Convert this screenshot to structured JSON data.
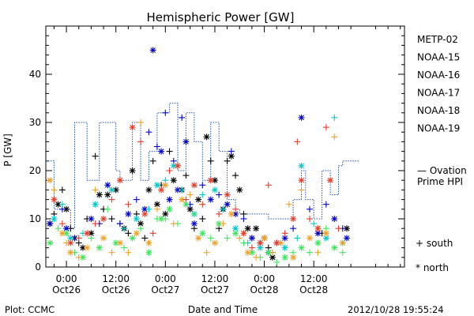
{
  "chart_data": {
    "type": "scatter",
    "title": "Hemispheric Power [GW]",
    "ylabel": "P [GW]",
    "xlabel": "Date and Time",
    "ylim": [
      0,
      50
    ],
    "yticks": [
      0,
      10,
      20,
      30,
      40
    ],
    "x_range_hours": [
      -5.0,
      82.0
    ],
    "x_axis_note": "hours relative to 2012-10-26 00:00 UT",
    "xticks": [
      {
        "t": 0,
        "line1": "0:00",
        "line2": "Oct26"
      },
      {
        "t": 12,
        "line1": "12:00",
        "line2": "Oct26"
      },
      {
        "t": 24,
        "line1": "0:00",
        "line2": "Oct27"
      },
      {
        "t": 36,
        "line1": "12:00",
        "line2": "Oct27"
      },
      {
        "t": 48,
        "line1": "0:00",
        "line2": "Oct28"
      },
      {
        "t": 60,
        "line1": "12:00",
        "line2": "Oct28"
      }
    ],
    "series": [
      {
        "name": "METP-02",
        "color": "#000000",
        "points": [
          [
            -4,
            9
          ],
          [
            -3,
            11
          ],
          [
            -2,
            13
          ],
          [
            -1,
            16
          ],
          [
            0,
            12
          ],
          [
            1,
            8
          ],
          [
            2,
            6
          ],
          [
            3,
            5
          ],
          [
            4,
            4
          ],
          [
            5,
            10
          ],
          [
            6,
            7
          ],
          [
            7,
            23
          ],
          [
            8,
            15
          ],
          [
            9,
            12
          ],
          [
            10,
            15
          ],
          [
            11,
            10
          ],
          [
            12,
            16
          ],
          [
            13,
            9
          ],
          [
            14,
            8
          ],
          [
            15,
            7
          ],
          [
            16,
            20
          ],
          [
            17,
            11
          ],
          [
            18,
            9
          ],
          [
            19,
            6
          ],
          [
            20,
            16
          ],
          [
            21,
            22
          ],
          [
            22,
            13
          ],
          [
            23,
            17
          ],
          [
            24,
            11
          ],
          [
            25,
            24
          ],
          [
            26,
            18
          ],
          [
            27,
            21
          ],
          [
            28,
            16
          ],
          [
            29,
            19
          ],
          [
            30,
            12
          ],
          [
            31,
            8
          ],
          [
            32,
            14
          ],
          [
            33,
            10
          ],
          [
            34,
            27
          ],
          [
            35,
            22
          ],
          [
            36,
            18
          ],
          [
            37,
            8
          ],
          [
            38,
            12
          ],
          [
            39,
            22
          ],
          [
            40,
            23
          ],
          [
            41,
            19
          ],
          [
            42,
            16
          ],
          [
            43,
            11
          ],
          [
            44,
            8
          ],
          [
            45,
            6
          ],
          [
            46,
            8
          ],
          [
            47,
            5
          ],
          [
            48,
            6
          ],
          [
            49,
            4
          ],
          [
            50,
            2
          ],
          [
            62,
            7
          ],
          [
            68,
            8
          ]
        ]
      },
      {
        "name": "NOAA-15",
        "color": "#0000c8",
        "points": [
          [
            -4,
            9
          ],
          [
            -1,
            12
          ],
          [
            0,
            8
          ],
          [
            2,
            6
          ],
          [
            6,
            10
          ],
          [
            8,
            9
          ],
          [
            10,
            17
          ],
          [
            13,
            9
          ],
          [
            15,
            11
          ],
          [
            17,
            14
          ],
          [
            19,
            12
          ],
          [
            20,
            28
          ],
          [
            21,
            45
          ],
          [
            22,
            25
          ],
          [
            23,
            24
          ],
          [
            24,
            32
          ],
          [
            25,
            14
          ],
          [
            26,
            22
          ],
          [
            27,
            16
          ],
          [
            28,
            31
          ],
          [
            29,
            26
          ],
          [
            30,
            13
          ],
          [
            31,
            9
          ],
          [
            33,
            17
          ],
          [
            35,
            14
          ],
          [
            37,
            15
          ],
          [
            39,
            13
          ],
          [
            40,
            24
          ],
          [
            41,
            11
          ],
          [
            43,
            10
          ],
          [
            45,
            6
          ],
          [
            47,
            5
          ],
          [
            49,
            3
          ],
          [
            51,
            5
          ],
          [
            53,
            6
          ],
          [
            55,
            8
          ],
          [
            57,
            31
          ],
          [
            59,
            12
          ],
          [
            61,
            7
          ],
          [
            63,
            13
          ],
          [
            65,
            10
          ],
          [
            67,
            8
          ],
          [
            68,
            6
          ]
        ]
      },
      {
        "name": "NOAA-16",
        "color": "#00c8c8",
        "points": [
          [
            -3,
            10
          ],
          [
            -1,
            13
          ],
          [
            1,
            6
          ],
          [
            4,
            7
          ],
          [
            7,
            13
          ],
          [
            9,
            10
          ],
          [
            11,
            16
          ],
          [
            14,
            8
          ],
          [
            17,
            10
          ],
          [
            20,
            12
          ],
          [
            22,
            17
          ],
          [
            24,
            18
          ],
          [
            26,
            21
          ],
          [
            28,
            16
          ],
          [
            31,
            11
          ],
          [
            33,
            15
          ],
          [
            36,
            16
          ],
          [
            38,
            12
          ],
          [
            41,
            8
          ],
          [
            44,
            5
          ],
          [
            47,
            4
          ],
          [
            50,
            3
          ],
          [
            53,
            4
          ],
          [
            56,
            6
          ],
          [
            57,
            21
          ],
          [
            60,
            9
          ],
          [
            63,
            6
          ],
          [
            65,
            31
          ],
          [
            67,
            5
          ]
        ]
      },
      {
        "name": "NOAA-17",
        "color": "#3ce65a",
        "points": [
          [
            -4,
            5
          ],
          [
            -2,
            8
          ],
          [
            0,
            7
          ],
          [
            2,
            3
          ],
          [
            4,
            2
          ],
          [
            6,
            6
          ],
          [
            8,
            4
          ],
          [
            10,
            12
          ],
          [
            12,
            5
          ],
          [
            14,
            4
          ],
          [
            16,
            6
          ],
          [
            18,
            8
          ],
          [
            20,
            3
          ],
          [
            22,
            10
          ],
          [
            23,
            10
          ],
          [
            24,
            10
          ],
          [
            25,
            12
          ],
          [
            27,
            9
          ],
          [
            29,
            13
          ],
          [
            31,
            11
          ],
          [
            33,
            7
          ],
          [
            35,
            6
          ],
          [
            37,
            9
          ],
          [
            39,
            6
          ],
          [
            41,
            7
          ],
          [
            43,
            5
          ],
          [
            45,
            3
          ],
          [
            47,
            2
          ],
          [
            49,
            3
          ],
          [
            51,
            1
          ],
          [
            53,
            2
          ],
          [
            55,
            3
          ],
          [
            57,
            4
          ],
          [
            59,
            3
          ],
          [
            61,
            5
          ],
          [
            63,
            8
          ],
          [
            65,
            4
          ],
          [
            67,
            3
          ]
        ]
      },
      {
        "name": "NOAA-18",
        "color": "#f0a028",
        "points": [
          [
            -4,
            18
          ],
          [
            -3,
            16
          ],
          [
            -1,
            7
          ],
          [
            0,
            5
          ],
          [
            1,
            3
          ],
          [
            3,
            2
          ],
          [
            5,
            4
          ],
          [
            7,
            16
          ],
          [
            9,
            6
          ],
          [
            11,
            3
          ],
          [
            13,
            5
          ],
          [
            15,
            3
          ],
          [
            17,
            7
          ],
          [
            18,
            30
          ],
          [
            20,
            5
          ],
          [
            22,
            12
          ],
          [
            24,
            17
          ],
          [
            26,
            9
          ],
          [
            28,
            14
          ],
          [
            30,
            15
          ],
          [
            32,
            6
          ],
          [
            34,
            3
          ],
          [
            36,
            5
          ],
          [
            38,
            9
          ],
          [
            40,
            11
          ],
          [
            42,
            6
          ],
          [
            44,
            3
          ],
          [
            46,
            2
          ],
          [
            48,
            6
          ],
          [
            50,
            3
          ],
          [
            52,
            5
          ],
          [
            54,
            13
          ],
          [
            55,
            2
          ],
          [
            57,
            16
          ],
          [
            59,
            6
          ],
          [
            61,
            3
          ],
          [
            63,
            7
          ],
          [
            65,
            27
          ],
          [
            67,
            5
          ]
        ]
      },
      {
        "name": "NOAA-19",
        "color": "#e63c28",
        "points": [
          [
            -3,
            14
          ],
          [
            -1,
            9
          ],
          [
            1,
            5
          ],
          [
            3,
            6
          ],
          [
            5,
            7
          ],
          [
            7,
            9
          ],
          [
            9,
            10
          ],
          [
            11,
            14
          ],
          [
            13,
            18
          ],
          [
            15,
            13
          ],
          [
            16,
            29
          ],
          [
            18,
            26
          ],
          [
            19,
            11
          ],
          [
            21,
            7
          ],
          [
            23,
            16
          ],
          [
            25,
            20
          ],
          [
            27,
            21
          ],
          [
            29,
            14
          ],
          [
            31,
            17
          ],
          [
            33,
            13
          ],
          [
            35,
            18
          ],
          [
            37,
            11
          ],
          [
            39,
            15
          ],
          [
            41,
            12
          ],
          [
            43,
            7
          ],
          [
            45,
            4
          ],
          [
            47,
            5
          ],
          [
            49,
            17
          ],
          [
            51,
            5
          ],
          [
            53,
            7
          ],
          [
            55,
            10
          ],
          [
            56,
            26
          ],
          [
            57,
            18
          ],
          [
            59,
            10
          ],
          [
            61,
            8
          ],
          [
            63,
            29
          ],
          [
            64,
            18
          ],
          [
            66,
            8
          ]
        ]
      }
    ],
    "ovation": {
      "name": "— Ovation Prime HPI",
      "color": "#1e50b4",
      "step": [
        [
          -5,
          22
        ],
        [
          -3,
          22
        ],
        [
          -3,
          12
        ],
        [
          1,
          12
        ],
        [
          1,
          8
        ],
        [
          2,
          8
        ],
        [
          2,
          30
        ],
        [
          5,
          30
        ],
        [
          5,
          18
        ],
        [
          8,
          18
        ],
        [
          8,
          30
        ],
        [
          12,
          30
        ],
        [
          12,
          20
        ],
        [
          13,
          20
        ],
        [
          13,
          18
        ],
        [
          16,
          18
        ],
        [
          16,
          30
        ],
        [
          18,
          30
        ],
        [
          18,
          18
        ],
        [
          20,
          18
        ],
        [
          20,
          24
        ],
        [
          22,
          24
        ],
        [
          22,
          32
        ],
        [
          25,
          32
        ],
        [
          25,
          34
        ],
        [
          27,
          34
        ],
        [
          27,
          20
        ],
        [
          29,
          20
        ],
        [
          29,
          32
        ],
        [
          31,
          32
        ],
        [
          31,
          26
        ],
        [
          33,
          26
        ],
        [
          33,
          18
        ],
        [
          35,
          18
        ],
        [
          35,
          30
        ],
        [
          37,
          30
        ],
        [
          37,
          24
        ],
        [
          39,
          24
        ],
        [
          39,
          14
        ],
        [
          41,
          14
        ],
        [
          41,
          12
        ],
        [
          42,
          12
        ],
        [
          42,
          11
        ],
        [
          49,
          11
        ],
        [
          49,
          10
        ],
        [
          55,
          10
        ],
        [
          55,
          14
        ],
        [
          57,
          14
        ],
        [
          57,
          20
        ],
        [
          58,
          20
        ],
        [
          58,
          14
        ],
        [
          60,
          14
        ],
        [
          60,
          10
        ],
        [
          62,
          10
        ],
        [
          62,
          20
        ],
        [
          64,
          20
        ],
        [
          64,
          15
        ],
        [
          66,
          15
        ],
        [
          66,
          21
        ],
        [
          67,
          21
        ],
        [
          67,
          22
        ],
        [
          71,
          22
        ]
      ]
    },
    "legend_south": "+ south",
    "legend_north": "* north",
    "footer_left": "Plot: CCMC",
    "footer_right": "2012/10/28 19:55:24"
  }
}
